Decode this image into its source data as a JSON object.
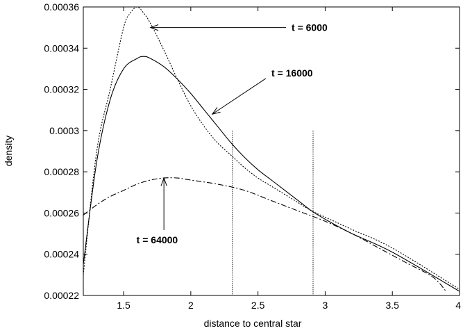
{
  "chart_data": {
    "type": "line",
    "xlabel": "distance to central star",
    "ylabel": "density",
    "xlim": [
      1.2,
      4.0
    ],
    "ylim": [
      0.00022,
      0.00036
    ],
    "grid": false,
    "legend": "none",
    "x_ticks": [
      {
        "value": 1.5,
        "label": "1.5"
      },
      {
        "value": 2.0,
        "label": "2"
      },
      {
        "value": 2.5,
        "label": "2.5"
      },
      {
        "value": 3.0,
        "label": "3"
      },
      {
        "value": 3.5,
        "label": "3.5"
      },
      {
        "value": 4.0,
        "label": "4"
      }
    ],
    "y_ticks": [
      {
        "value": 0.00022,
        "label": "0.00022"
      },
      {
        "value": 0.00024,
        "label": "0.00024"
      },
      {
        "value": 0.00026,
        "label": "0.00026"
      },
      {
        "value": 0.00028,
        "label": "0.00028"
      },
      {
        "value": 0.0003,
        "label": "0.0003"
      },
      {
        "value": 0.00032,
        "label": "0.00032"
      },
      {
        "value": 0.00034,
        "label": "0.00034"
      },
      {
        "value": 0.00036,
        "label": "0.00036"
      }
    ],
    "series": [
      {
        "dash": "dotted",
        "x": [
          1.2,
          1.3,
          1.4,
          1.5,
          1.55,
          1.6,
          1.65,
          1.7,
          1.8,
          1.9,
          2.0,
          2.1,
          2.2,
          2.3,
          2.4,
          2.5,
          2.6,
          2.8,
          2.9,
          3.0,
          3.2,
          3.5,
          4.0
        ],
        "values": [
          0.00023,
          0.00029,
          0.00032,
          0.00035,
          0.000357,
          0.00036,
          0.000357,
          0.000352,
          0.000339,
          0.000325,
          0.000312,
          0.000302,
          0.000294,
          0.000288,
          0.000282,
          0.000277,
          0.000273,
          0.000265,
          0.000261,
          0.000258,
          0.000252,
          0.000243,
          0.000223
        ]
      },
      {
        "dash": "solid",
        "x": [
          1.2,
          1.3,
          1.4,
          1.5,
          1.6,
          1.65,
          1.7,
          1.8,
          1.9,
          2.0,
          2.1,
          2.2,
          2.3,
          2.4,
          2.5,
          2.6,
          2.8,
          2.9,
          3.0,
          3.2,
          3.5,
          4.0
        ],
        "values": [
          0.000235,
          0.000285,
          0.000315,
          0.00033,
          0.000335,
          0.000336,
          0.000335,
          0.000331,
          0.000325,
          0.000318,
          0.00031,
          0.000302,
          0.000294,
          0.000287,
          0.000281,
          0.000276,
          0.000266,
          0.000261,
          0.000257,
          0.00025,
          0.000241,
          0.000222
        ]
      },
      {
        "dash": "dashdot",
        "x": [
          1.2,
          1.3,
          1.4,
          1.5,
          1.6,
          1.7,
          1.8,
          1.9,
          2.0,
          2.2,
          2.4,
          2.6,
          2.8,
          3.0,
          3.2,
          3.4,
          3.6,
          3.8,
          3.9
        ],
        "values": [
          0.000259,
          0.000264,
          0.000268,
          0.000271,
          0.000274,
          0.000276,
          0.000277,
          0.000277,
          0.000276,
          0.000274,
          0.000271,
          0.000266,
          0.000261,
          0.000256,
          0.00025,
          0.000243,
          0.000236,
          0.000229,
          0.000222
        ]
      }
    ],
    "vertical_lines": [
      2.31,
      2.91
    ],
    "vertical_line_top": 0.0003,
    "annotations": [
      {
        "text": "t =  6000",
        "label_x": 2.75,
        "label_y": 0.00035,
        "arrow_to_x": 1.7,
        "arrow_to_y": 0.00035
      },
      {
        "text": "t = 16000",
        "label_x": 2.6,
        "label_y": 0.000328,
        "arrow_to_x": 2.16,
        "arrow_to_y": 0.000308
      },
      {
        "text": "t = 64000",
        "label_x": 1.75,
        "label_y": 0.000247,
        "arrow_to_x": 1.8,
        "arrow_to_y": 0.000277
      }
    ]
  }
}
